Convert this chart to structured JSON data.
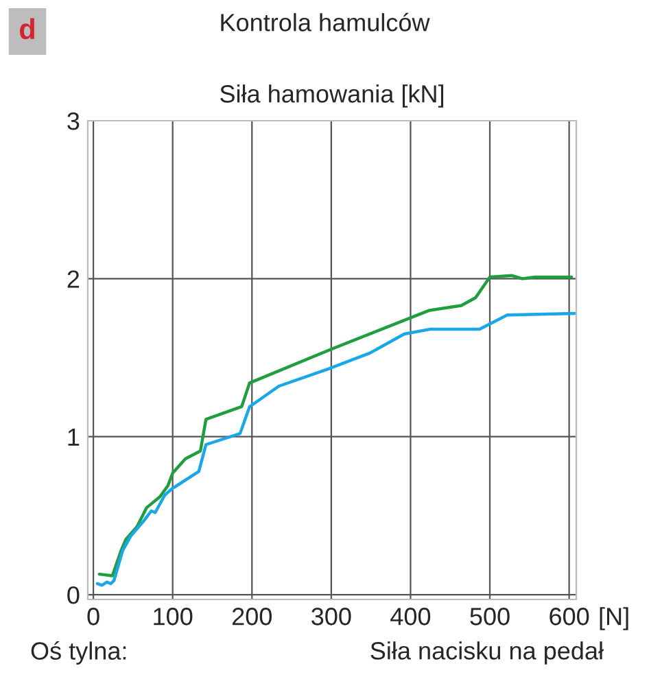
{
  "chart_data": {
    "type": "line",
    "title": "Kontrola hamulców",
    "ylabel": "Siła hamowania [kN]",
    "xlabel": "Siła nacisku na pedał",
    "annotations": [
      "d",
      "[N]",
      "Oś tylna:"
    ],
    "xlim": [
      -7,
      609
    ],
    "xticks": [
      0,
      100,
      200,
      300,
      400,
      500,
      600
    ],
    "ylim": [
      -0.03,
      3
    ],
    "yticks": [
      0,
      1,
      2,
      3
    ],
    "grid": true,
    "line_style": "solid",
    "series": [
      {
        "color": "#1e9e3e",
        "x": [
          7.5,
          24,
          35,
          41,
          55,
          67,
          84,
          94,
          100,
          116,
          135,
          142,
          187,
          197,
          303,
          424,
          464,
          482,
          500,
          528,
          541,
          557,
          603
        ],
        "values": [
          0.13,
          0.12,
          0.28,
          0.35,
          0.43,
          0.55,
          0.62,
          0.69,
          0.77,
          0.86,
          0.91,
          1.11,
          1.19,
          1.34,
          1.56,
          1.8,
          1.83,
          1.88,
          2.01,
          2.02,
          2.0,
          2.01,
          2.01
        ]
      },
      {
        "color": "#1aa7e8",
        "x": [
          5,
          11,
          17,
          22,
          26,
          37,
          47,
          64,
          73,
          78,
          90,
          99,
          133,
          142,
          185,
          197,
          234,
          297,
          349,
          392,
          424,
          487,
          522,
          607
        ],
        "values": [
          0.07,
          0.06,
          0.08,
          0.07,
          0.09,
          0.28,
          0.37,
          0.47,
          0.53,
          0.52,
          0.63,
          0.67,
          0.78,
          0.95,
          1.02,
          1.19,
          1.32,
          1.43,
          1.53,
          1.65,
          1.68,
          1.68,
          1.77,
          1.78
        ]
      }
    ]
  }
}
